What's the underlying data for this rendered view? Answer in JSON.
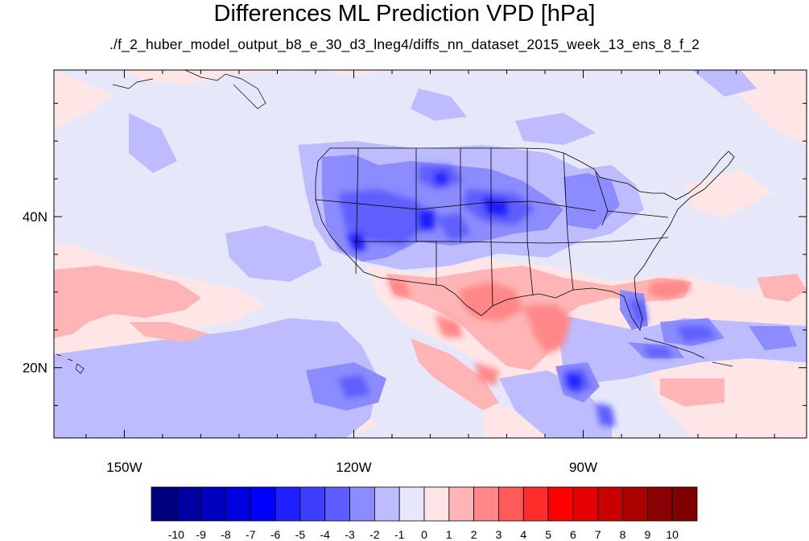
{
  "title": "Differences ML Prediction VPD [hPa]",
  "subtitle": "./f_2_huber_model_output_b8_e_30_d3_lneg4/diffs_nn_dataset_2015_week_13_ens_8_f_2",
  "map": {
    "projection": "cylindrical-equidistant",
    "lon_range": [
      -159.2,
      -60.8
    ],
    "lat_range": [
      10.7,
      59.4
    ],
    "lon_ticks": [
      {
        "value": -150,
        "label": "150W"
      },
      {
        "value": -120,
        "label": "120W"
      },
      {
        "value": -90,
        "label": "90W"
      }
    ],
    "lat_ticks": [
      {
        "value": 40,
        "label": "40N"
      },
      {
        "value": 20,
        "label": "20N"
      }
    ],
    "background_color": "#e6e8fa",
    "border_color": "#000000"
  },
  "colorbar": {
    "levels": [
      "-10",
      "-9",
      "-8",
      "-7",
      "-6",
      "-5",
      "-4",
      "-3",
      "-2",
      "-1",
      "0",
      "1",
      "2",
      "3",
      "4",
      "5",
      "6",
      "7",
      "8",
      "9",
      "10"
    ],
    "colors": [
      "#00007f",
      "#0000a0",
      "#0000c0",
      "#0000df",
      "#0000ff",
      "#1f1fff",
      "#3e3eff",
      "#5e5eff",
      "#8c8cff",
      "#bcbcff",
      "#e6e8fa",
      "#ffe6e6",
      "#ffb5b5",
      "#ff8787",
      "#ff5a5a",
      "#ff2c2c",
      "#ff0000",
      "#e50000",
      "#c80000",
      "#a90000",
      "#8b0000",
      "#7f0000"
    ]
  }
}
